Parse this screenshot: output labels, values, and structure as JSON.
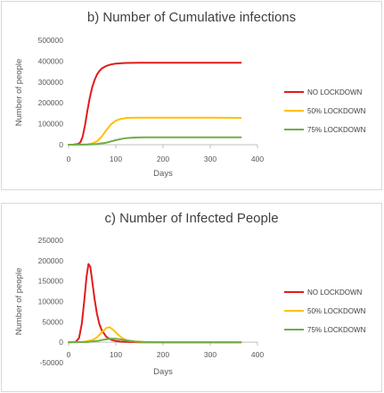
{
  "chart_data": [
    {
      "type": "line",
      "title": "b) Number of Cumulative infections",
      "xlabel": "Days",
      "ylabel": "Number of people",
      "xlim": [
        0,
        400
      ],
      "ylim": [
        0,
        500000
      ],
      "x_ticks": [
        0,
        100,
        200,
        300,
        400
      ],
      "y_ticks": [
        0,
        100000,
        200000,
        300000,
        400000,
        500000
      ],
      "legend": "right",
      "series": [
        {
          "name": "NO LOCKDOWN",
          "color": "#e21b1b",
          "x": [
            0,
            10,
            20,
            25,
            30,
            35,
            40,
            45,
            50,
            55,
            60,
            65,
            70,
            80,
            90,
            100,
            120,
            150,
            200,
            250,
            300,
            365
          ],
          "values": [
            0,
            300,
            3000,
            12000,
            40000,
            95000,
            165000,
            225000,
            275000,
            310000,
            335000,
            352000,
            364000,
            377000,
            384000,
            388000,
            391000,
            392000,
            392000,
            392000,
            392000,
            392000
          ]
        },
        {
          "name": "50% LOCKDOWN",
          "color": "#ffc000",
          "x": [
            0,
            20,
            40,
            50,
            60,
            70,
            80,
            90,
            100,
            110,
            120,
            130,
            150,
            200,
            250,
            300,
            365
          ],
          "values": [
            0,
            300,
            2000,
            6000,
            16000,
            38000,
            70000,
            98000,
            115000,
            123000,
            127000,
            128500,
            129000,
            129000,
            129000,
            129000,
            128000
          ]
        },
        {
          "name": "75% LOCKDOWN",
          "color": "#70ad47",
          "x": [
            0,
            40,
            60,
            80,
            100,
            120,
            140,
            160,
            200,
            250,
            300,
            365
          ],
          "values": [
            0,
            500,
            3000,
            10000,
            22000,
            31000,
            34000,
            35000,
            35000,
            35000,
            35000,
            35000
          ]
        }
      ]
    },
    {
      "type": "line",
      "title": "c) Number of Infected People",
      "xlabel": "Days",
      "ylabel": "Number of people",
      "xlim": [
        0,
        400
      ],
      "ylim": [
        -50000,
        250000
      ],
      "x_ticks": [
        0,
        100,
        200,
        300,
        400
      ],
      "y_ticks": [
        -50000,
        0,
        50000,
        100000,
        150000,
        200000,
        250000
      ],
      "legend": "right",
      "series": [
        {
          "name": "NO LOCKDOWN",
          "color": "#e21b1b",
          "x": [
            0,
            15,
            22,
            28,
            33,
            38,
            42,
            46,
            50,
            55,
            60,
            65,
            70,
            80,
            90,
            100,
            110,
            130,
            150,
            200,
            365
          ],
          "values": [
            0,
            1000,
            10000,
            45000,
            100000,
            160000,
            192000,
            185000,
            150000,
            105000,
            70000,
            45000,
            30000,
            13000,
            6000,
            3000,
            1500,
            500,
            0,
            0,
            0
          ]
        },
        {
          "name": "50% LOCKDOWN",
          "color": "#ffc000",
          "x": [
            0,
            30,
            50,
            60,
            70,
            80,
            87,
            95,
            105,
            115,
            125,
            140,
            160,
            200,
            365
          ],
          "values": [
            0,
            500,
            5000,
            12000,
            24000,
            35000,
            37000,
            30000,
            18000,
            9000,
            4000,
            1500,
            300,
            0,
            0
          ]
        },
        {
          "name": "75% LOCKDOWN",
          "color": "#70ad47",
          "x": [
            0,
            40,
            60,
            75,
            90,
            100,
            110,
            125,
            140,
            160,
            200,
            365
          ],
          "values": [
            0,
            500,
            3000,
            6500,
            9000,
            8500,
            7000,
            4000,
            2000,
            500,
            0,
            0
          ]
        }
      ]
    }
  ]
}
